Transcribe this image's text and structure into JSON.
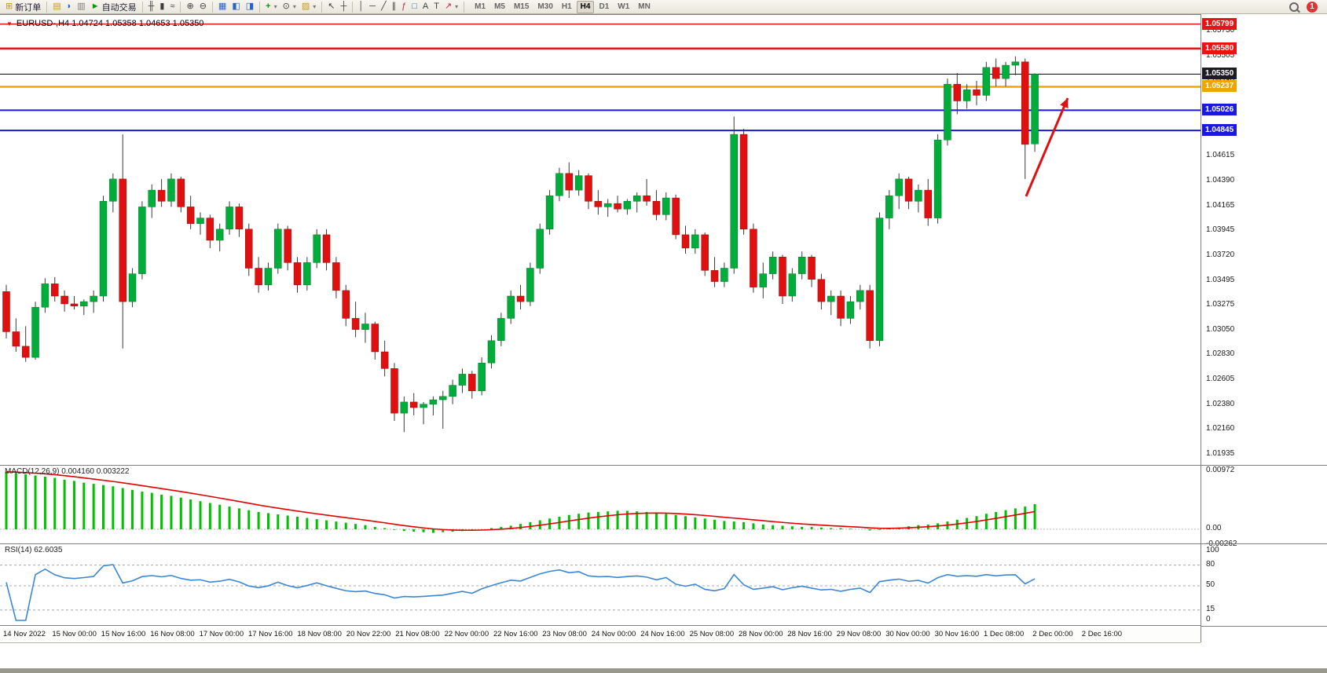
{
  "toolbar": {
    "new_order_label": "新订单",
    "auto_trading_label": "自动交易",
    "text_tool_label": "A",
    "frame_tool_label": "T",
    "fibo_tool_label": "ƒ",
    "timeframes": [
      "M1",
      "M5",
      "M15",
      "M30",
      "H1",
      "H4",
      "D1",
      "W1",
      "MN"
    ],
    "active_timeframe": "H4",
    "notification_count": "1"
  },
  "chart": {
    "title": "EURUSD-,H4  1.04724 1.05358 1.04653 1.05350",
    "macd_label": "MACD(12,26,9) 0.004160 0.003222",
    "rsi_label": "RSI(14) 62.6035",
    "price_axis_labels": [
      "1.05730",
      "1.05505",
      "1.05280",
      "1.04615",
      "1.04390",
      "1.04165",
      "1.03945",
      "1.03720",
      "1.03495",
      "1.03275",
      "1.03050",
      "1.02830",
      "1.02605",
      "1.02380",
      "1.02160",
      "1.01935"
    ],
    "macd_axis_labels": [
      "0.00972",
      "0.00",
      "-0.00262"
    ],
    "rsi_axis_labels": [
      "100",
      "80",
      "50",
      "15",
      "0"
    ],
    "time_axis_labels": [
      "14 Nov 2022",
      "15 Nov 00:00",
      "15 Nov 16:00",
      "16 Nov 08:00",
      "17 Nov 00:00",
      "17 Nov 16:00",
      "18 Nov 08:00",
      "20 Nov 22:00",
      "21 Nov 08:00",
      "22 Nov 00:00",
      "22 Nov 16:00",
      "23 Nov 08:00",
      "24 Nov 00:00",
      "24 Nov 16:00",
      "25 Nov 08:00",
      "28 Nov 00:00",
      "28 Nov 16:00",
      "29 Nov 08:00",
      "30 Nov 00:00",
      "30 Nov 16:00",
      "1 Dec 08:00",
      "2 Dec 00:00",
      "2 Dec 16:00"
    ]
  },
  "chart_data": {
    "type": "candlestick",
    "symbol": "EURUSD-",
    "timeframe": "H4",
    "last_candle": {
      "open": 1.04724,
      "high": 1.05358,
      "low": 1.04653,
      "close": 1.0535
    },
    "y_range": [
      1.0186,
      1.0586
    ],
    "bull_color": "#00ac3a",
    "bear_color": "#e01010",
    "wick_color": "#3a3a3a",
    "ohlc": [
      [
        1.034,
        1.0346,
        1.0298,
        1.0304
      ],
      [
        1.0304,
        1.0316,
        1.0286,
        1.0291
      ],
      [
        1.0291,
        1.0309,
        1.0277,
        1.0281
      ],
      [
        1.0281,
        1.0331,
        1.0279,
        1.0326
      ],
      [
        1.0326,
        1.0352,
        1.0321,
        1.0347
      ],
      [
        1.0347,
        1.0353,
        1.0331,
        1.0336
      ],
      [
        1.0336,
        1.0341,
        1.0322,
        1.0329
      ],
      [
        1.0329,
        1.0336,
        1.0324,
        1.0327
      ],
      [
        1.0327,
        1.0333,
        1.0319,
        1.0331
      ],
      [
        1.0331,
        1.0341,
        1.0321,
        1.0336
      ],
      [
        1.0336,
        1.0426,
        1.0331,
        1.0421
      ],
      [
        1.0421,
        1.0446,
        1.0411,
        1.0441
      ],
      [
        1.0441,
        1.0481,
        1.0289,
        1.0331
      ],
      [
        1.0331,
        1.0361,
        1.0326,
        1.0356
      ],
      [
        1.0356,
        1.0421,
        1.0351,
        1.0416
      ],
      [
        1.0416,
        1.0436,
        1.0406,
        1.0431
      ],
      [
        1.0431,
        1.0441,
        1.0416,
        1.0421
      ],
      [
        1.0421,
        1.0446,
        1.0416,
        1.0441
      ],
      [
        1.0441,
        1.0443,
        1.0411,
        1.0416
      ],
      [
        1.0416,
        1.0426,
        1.0396,
        1.0401
      ],
      [
        1.0401,
        1.0411,
        1.0391,
        1.0406
      ],
      [
        1.0406,
        1.0409,
        1.0379,
        1.0386
      ],
      [
        1.0386,
        1.0401,
        1.0376,
        1.0396
      ],
      [
        1.0396,
        1.0421,
        1.0391,
        1.0416
      ],
      [
        1.0416,
        1.0419,
        1.0389,
        1.0396
      ],
      [
        1.0396,
        1.0401,
        1.0354,
        1.0361
      ],
      [
        1.0361,
        1.0371,
        1.0339,
        1.0346
      ],
      [
        1.0346,
        1.0366,
        1.0341,
        1.0361
      ],
      [
        1.0361,
        1.0401,
        1.0356,
        1.0396
      ],
      [
        1.0396,
        1.0399,
        1.0359,
        1.0366
      ],
      [
        1.0366,
        1.0371,
        1.0339,
        1.0346
      ],
      [
        1.0346,
        1.0371,
        1.0341,
        1.0366
      ],
      [
        1.0366,
        1.0396,
        1.0361,
        1.0391
      ],
      [
        1.0391,
        1.0396,
        1.0359,
        1.0366
      ],
      [
        1.0366,
        1.0371,
        1.0334,
        1.0341
      ],
      [
        1.0341,
        1.0346,
        1.0309,
        1.0316
      ],
      [
        1.0316,
        1.0331,
        1.0299,
        1.0306
      ],
      [
        1.0306,
        1.0321,
        1.0294,
        1.0311
      ],
      [
        1.0311,
        1.0313,
        1.0279,
        1.0286
      ],
      [
        1.0286,
        1.0296,
        1.0264,
        1.0271
      ],
      [
        1.0271,
        1.0276,
        1.0224,
        1.0231
      ],
      [
        1.0231,
        1.0246,
        1.0214,
        1.0241
      ],
      [
        1.0241,
        1.0249,
        1.0229,
        1.0236
      ],
      [
        1.0236,
        1.0241,
        1.0221,
        1.0239
      ],
      [
        1.0239,
        1.0246,
        1.0229,
        1.0243
      ],
      [
        1.0243,
        1.0251,
        1.0217,
        1.0246
      ],
      [
        1.0246,
        1.0261,
        1.0239,
        1.0256
      ],
      [
        1.0256,
        1.0271,
        1.0249,
        1.0266
      ],
      [
        1.0266,
        1.0269,
        1.0244,
        1.0251
      ],
      [
        1.0251,
        1.0281,
        1.0247,
        1.0276
      ],
      [
        1.0276,
        1.0301,
        1.0271,
        1.0296
      ],
      [
        1.0296,
        1.0321,
        1.0291,
        1.0316
      ],
      [
        1.0316,
        1.0341,
        1.0311,
        1.0336
      ],
      [
        1.0336,
        1.0346,
        1.0324,
        1.0331
      ],
      [
        1.0331,
        1.0366,
        1.0327,
        1.0361
      ],
      [
        1.0361,
        1.0401,
        1.0356,
        1.0396
      ],
      [
        1.0396,
        1.0431,
        1.0391,
        1.0426
      ],
      [
        1.0426,
        1.0451,
        1.0421,
        1.0446
      ],
      [
        1.0446,
        1.0456,
        1.0424,
        1.0431
      ],
      [
        1.0431,
        1.0449,
        1.0426,
        1.0444
      ],
      [
        1.0444,
        1.0446,
        1.0414,
        1.0421
      ],
      [
        1.0421,
        1.0431,
        1.0409,
        1.0416
      ],
      [
        1.0416,
        1.0423,
        1.0407,
        1.0419
      ],
      [
        1.0419,
        1.0426,
        1.0411,
        1.0414
      ],
      [
        1.0414,
        1.0423,
        1.0409,
        1.0421
      ],
      [
        1.0421,
        1.0429,
        1.0411,
        1.0426
      ],
      [
        1.0426,
        1.0441,
        1.0417,
        1.0421
      ],
      [
        1.0421,
        1.0431,
        1.0404,
        1.0409
      ],
      [
        1.0409,
        1.0429,
        1.0404,
        1.0424
      ],
      [
        1.0424,
        1.0427,
        1.0387,
        1.0391
      ],
      [
        1.0391,
        1.0399,
        1.0374,
        1.0379
      ],
      [
        1.0379,
        1.0396,
        1.0374,
        1.0391
      ],
      [
        1.0391,
        1.0393,
        1.0354,
        1.0359
      ],
      [
        1.0359,
        1.0371,
        1.0344,
        1.0349
      ],
      [
        1.0349,
        1.0366,
        1.0344,
        1.0361
      ],
      [
        1.0361,
        1.0497,
        1.0356,
        1.0481
      ],
      [
        1.0481,
        1.0486,
        1.0391,
        1.0396
      ],
      [
        1.0396,
        1.0401,
        1.0339,
        1.0344
      ],
      [
        1.0344,
        1.0366,
        1.0334,
        1.0356
      ],
      [
        1.0356,
        1.0376,
        1.0351,
        1.0371
      ],
      [
        1.0371,
        1.0373,
        1.0329,
        1.0336
      ],
      [
        1.0336,
        1.0361,
        1.0331,
        1.0356
      ],
      [
        1.0356,
        1.0376,
        1.0351,
        1.0371
      ],
      [
        1.0371,
        1.0373,
        1.0344,
        1.0351
      ],
      [
        1.0351,
        1.0356,
        1.0324,
        1.0331
      ],
      [
        1.0331,
        1.0341,
        1.0319,
        1.0336
      ],
      [
        1.0336,
        1.0341,
        1.0309,
        1.0316
      ],
      [
        1.0316,
        1.0336,
        1.0311,
        1.0331
      ],
      [
        1.0331,
        1.0346,
        1.0324,
        1.0341
      ],
      [
        1.0341,
        1.0346,
        1.0289,
        1.0296
      ],
      [
        1.0296,
        1.0411,
        1.0291,
        1.0406
      ],
      [
        1.0406,
        1.0431,
        1.0396,
        1.0426
      ],
      [
        1.0426,
        1.0446,
        1.0414,
        1.0441
      ],
      [
        1.0441,
        1.0443,
        1.0414,
        1.0421
      ],
      [
        1.0421,
        1.0436,
        1.0411,
        1.0431
      ],
      [
        1.0431,
        1.0441,
        1.0399,
        1.0406
      ],
      [
        1.0406,
        1.0481,
        1.0401,
        1.0476
      ],
      [
        1.0476,
        1.0531,
        1.0471,
        1.0526
      ],
      [
        1.0526,
        1.0536,
        1.0499,
        1.0511
      ],
      [
        1.0511,
        1.0526,
        1.0504,
        1.0521
      ],
      [
        1.0521,
        1.0529,
        1.0507,
        1.0516
      ],
      [
        1.0516,
        1.0546,
        1.0511,
        1.0541
      ],
      [
        1.0541,
        1.0549,
        1.0524,
        1.0531
      ],
      [
        1.0531,
        1.0546,
        1.0524,
        1.0543
      ],
      [
        1.0543,
        1.0551,
        1.0534,
        1.0546
      ],
      [
        1.0546,
        1.0549,
        1.0441,
        1.0472
      ],
      [
        1.04724,
        1.05358,
        1.04653,
        1.0535
      ]
    ],
    "levels": [
      {
        "price": 1.05799,
        "label": "1.05799",
        "color": "#e81313",
        "width": 1.5
      },
      {
        "price": 1.0558,
        "label": "1.05580",
        "color": "#e81313",
        "width": 2.5
      },
      {
        "price": 1.0535,
        "label": "1.05350",
        "color": "#1c1c22",
        "width": 1.2
      },
      {
        "price": 1.05237,
        "label": "1.05237",
        "color": "#efa400",
        "width": 2.5
      },
      {
        "price": 1.05026,
        "label": "1.05026",
        "color": "#1919dc",
        "width": 2
      },
      {
        "price": 1.04845,
        "label": "1.04845",
        "color": "#1919dc",
        "width": 2
      }
    ],
    "indicators": [
      {
        "name": "MACD",
        "params": [
          12,
          26,
          9
        ],
        "value": 0.00416,
        "signal": 0.003222,
        "histogram_color": "#00c000",
        "signal_color": "#e00000",
        "axis": [
          0.00972,
          0.0,
          -0.00262
        ],
        "histogram": [
          0.0096,
          0.0094,
          0.0092,
          0.009,
          0.0088,
          0.0086,
          0.0083,
          0.0081,
          0.0078,
          0.0076,
          0.0074,
          0.0072,
          0.0069,
          0.0066,
          0.0063,
          0.0061,
          0.0058,
          0.0056,
          0.0053,
          0.005,
          0.0047,
          0.0044,
          0.0041,
          0.0038,
          0.0035,
          0.0032,
          0.0029,
          0.0027,
          0.0025,
          0.0023,
          0.0021,
          0.0019,
          0.0017,
          0.0015,
          0.0013,
          0.0011,
          0.0009,
          0.0007,
          0.0004,
          0.0002,
          -0.0001,
          -0.0003,
          -0.0004,
          -0.0005,
          -0.0006,
          -0.0005,
          -0.0004,
          -0.0003,
          -0.0002,
          0.0,
          0.0002,
          0.0004,
          0.0006,
          0.0009,
          0.0012,
          0.0015,
          0.0018,
          0.0021,
          0.0024,
          0.0026,
          0.0028,
          0.0029,
          0.003,
          0.0031,
          0.0031,
          0.003,
          0.0029,
          0.0028,
          0.0026,
          0.0024,
          0.0022,
          0.002,
          0.0018,
          0.0016,
          0.0014,
          0.0013,
          0.0012,
          0.001,
          0.0008,
          0.0007,
          0.0006,
          0.0005,
          0.0004,
          0.0004,
          0.0003,
          0.0002,
          0.0002,
          0.0001,
          0.0,
          -0.0002,
          -0.0001,
          0.0001,
          0.0003,
          0.0005,
          0.0007,
          0.0008,
          0.001,
          0.0013,
          0.0016,
          0.0019,
          0.0022,
          0.0026,
          0.0029,
          0.0032,
          0.0035,
          0.0038,
          0.0042
        ]
      },
      {
        "name": "RSI",
        "params": [
          14
        ],
        "value": 62.6035,
        "color": "#3b86d6",
        "levels": [
          80,
          50,
          15
        ],
        "axis": [
          100,
          80,
          50,
          15,
          0
        ]
      }
    ],
    "annotation_arrow": {
      "from": [
        1306,
        232
      ],
      "to": [
        1359,
        107
      ],
      "color": "#e01010"
    }
  }
}
